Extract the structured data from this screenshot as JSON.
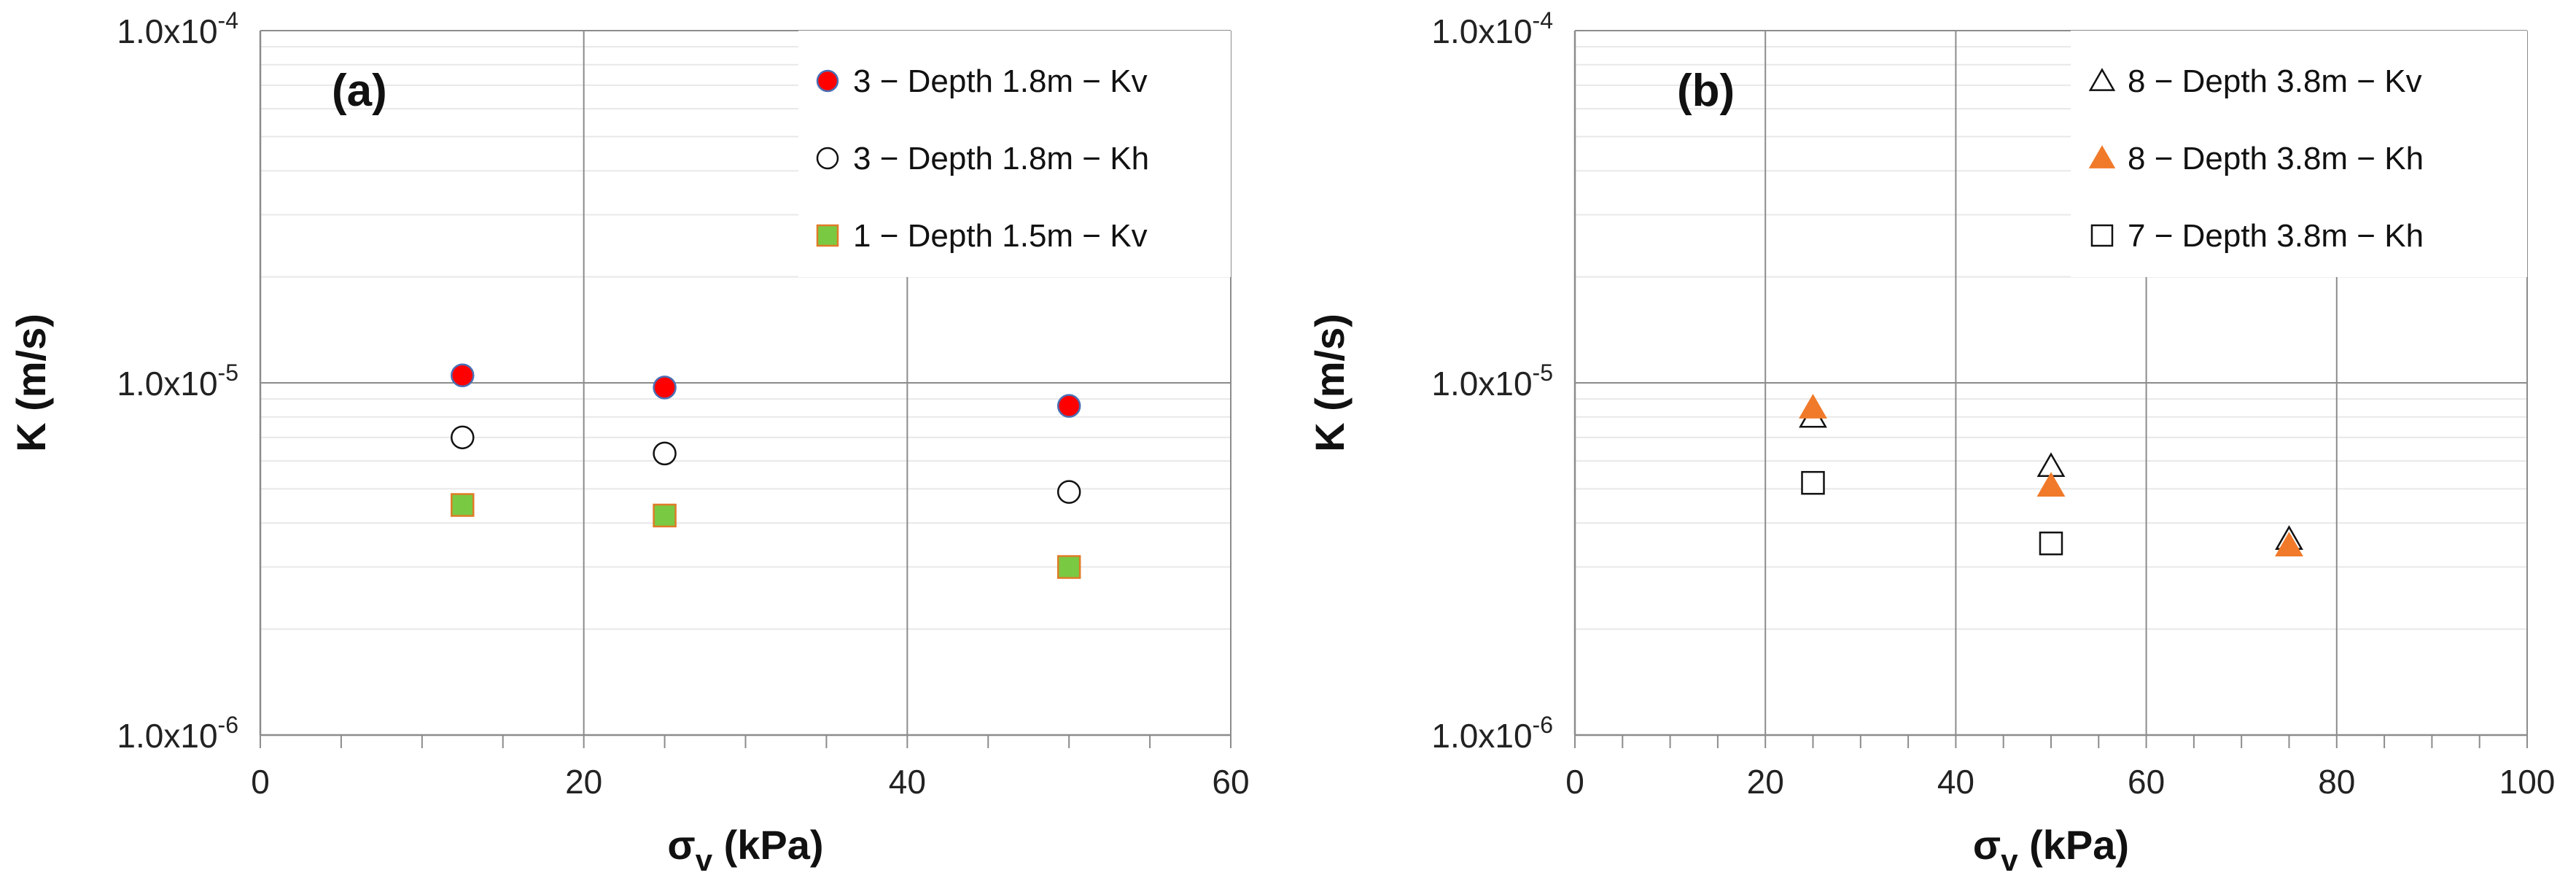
{
  "chart_data": [
    {
      "type": "scatter",
      "panel_label": "(a)",
      "title": "",
      "xlabel": "σ",
      "xlabel_sub": "v",
      "xlabel_unit": " (kPa)",
      "ylabel": "K (m/s)",
      "xlim": [
        0,
        60
      ],
      "ylim": [
        1e-06,
        0.0001
      ],
      "yscale": "log",
      "x_ticks": [
        "0",
        "20",
        "40",
        "60"
      ],
      "y_ticks": [
        {
          "mant": "1.0x10",
          "exp": "-6"
        },
        {
          "mant": "1.0x10",
          "exp": "-5"
        },
        {
          "mant": "1.0x10",
          "exp": "-4"
        }
      ],
      "grid": true,
      "legend_position": "top-right",
      "series": [
        {
          "name": "3 − Depth 1.8m − Kv",
          "marker": "circle",
          "fill": "#ff0000",
          "stroke": "#4a6fb5",
          "x": [
            12.5,
            25,
            50
          ],
          "y": [
            1.05e-05,
            9.7e-06,
            8.6e-06
          ]
        },
        {
          "name": "3 − Depth 1.8m − Kh",
          "marker": "circle",
          "fill": "#ffffff",
          "stroke": "#111111",
          "x": [
            12.5,
            25,
            50
          ],
          "y": [
            7e-06,
            6.3e-06,
            4.9e-06
          ]
        },
        {
          "name": "1 − Depth 1.5m − Kv",
          "marker": "square",
          "fill": "#7ac943",
          "stroke": "#e07b28",
          "x": [
            12.5,
            25,
            50
          ],
          "y": [
            4.5e-06,
            4.2e-06,
            3e-06
          ]
        }
      ]
    },
    {
      "type": "scatter",
      "panel_label": "(b)",
      "title": "",
      "xlabel": "σ",
      "xlabel_sub": "v",
      "xlabel_unit": " (kPa)",
      "ylabel": "K (m/s)",
      "xlim": [
        0,
        100
      ],
      "ylim": [
        1e-06,
        0.0001
      ],
      "yscale": "log",
      "x_ticks": [
        "0",
        "20",
        "40",
        "60",
        "80",
        "100"
      ],
      "y_ticks": [
        {
          "mant": "1.0x10",
          "exp": "-6"
        },
        {
          "mant": "1.0x10",
          "exp": "-5"
        },
        {
          "mant": "1.0x10",
          "exp": "-4"
        }
      ],
      "grid": true,
      "legend_position": "top-right",
      "series": [
        {
          "name": "8 − Depth 3.8m − Kv",
          "marker": "triangle",
          "fill": "#ffffff",
          "stroke": "#111111",
          "x": [
            25,
            50,
            75
          ],
          "y": [
            8e-06,
            5.8e-06,
            3.6e-06
          ]
        },
        {
          "name": "8 − Depth 3.8m − Kh",
          "marker": "triangle",
          "fill": "#f07a2a",
          "stroke": "#f07a2a",
          "x": [
            25,
            50,
            75
          ],
          "y": [
            8.5e-06,
            5.1e-06,
            3.45e-06
          ]
        },
        {
          "name": "7 − Depth 3.8m − Kh",
          "marker": "square",
          "fill": "#ffffff",
          "stroke": "#111111",
          "x": [
            25,
            50,
            75
          ],
          "y": [
            5.2e-06,
            3.5e-06,
            null
          ]
        }
      ]
    }
  ]
}
